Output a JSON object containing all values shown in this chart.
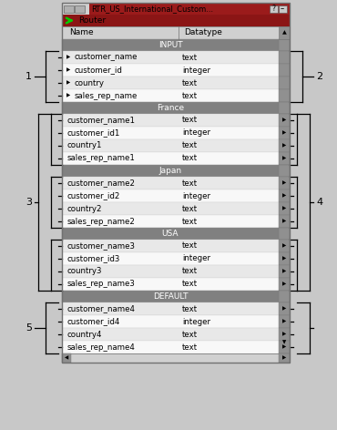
{
  "title": "RTR_US_International_Custom...",
  "subtitle": "Router",
  "columns": [
    "Name",
    "Datatype"
  ],
  "sections": [
    {
      "name": "INPUT",
      "rows": [
        [
          "customer_name",
          "text"
        ],
        [
          "customer_id",
          "integer"
        ],
        [
          "country",
          "text"
        ],
        [
          "sales_rep_name",
          "text"
        ]
      ],
      "has_left_arrow": true,
      "has_right_arrow": false
    },
    {
      "name": "France",
      "rows": [
        [
          "customer_name1",
          "text"
        ],
        [
          "customer_id1",
          "integer"
        ],
        [
          "country1",
          "text"
        ],
        [
          "sales_rep_name1",
          "text"
        ]
      ],
      "has_left_arrow": false,
      "has_right_arrow": true
    },
    {
      "name": "Japan",
      "rows": [
        [
          "customer_name2",
          "text"
        ],
        [
          "customer_id2",
          "integer"
        ],
        [
          "country2",
          "text"
        ],
        [
          "sales_rep_name2",
          "text"
        ]
      ],
      "has_left_arrow": false,
      "has_right_arrow": true
    },
    {
      "name": "USA",
      "rows": [
        [
          "customer_name3",
          "text"
        ],
        [
          "customer_id3",
          "integer"
        ],
        [
          "country3",
          "text"
        ],
        [
          "sales_rep_name3",
          "text"
        ]
      ],
      "has_left_arrow": false,
      "has_right_arrow": true
    },
    {
      "name": "DEFAULT",
      "rows": [
        [
          "customer_name4",
          "text"
        ],
        [
          "customer_id4",
          "integer"
        ],
        [
          "country4",
          "text"
        ],
        [
          "sales_rep_name4",
          "text"
        ]
      ],
      "has_left_arrow": false,
      "has_right_arrow": true
    }
  ]
}
